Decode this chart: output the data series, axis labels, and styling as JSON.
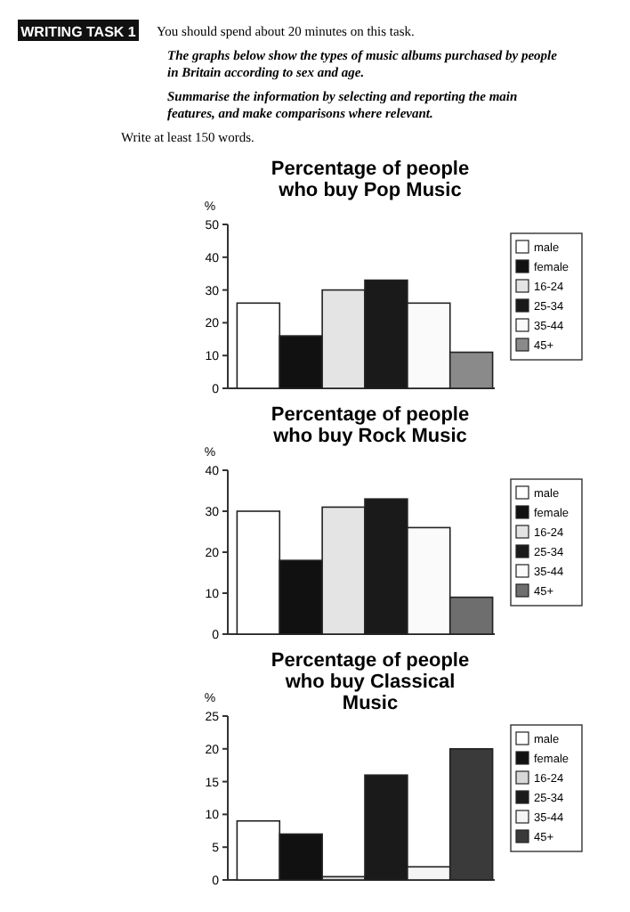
{
  "chart_data": [
    {
      "type": "other",
      "title": "WRITING TASK 1",
      "annotations": [
        "You should spend about 20 minutes on this task.",
        "The graphs below show the types of music albums purchased by people in Britain according to sex and age.",
        "Summarise the information by selecting and reporting the main features, and make comparisons where relevant.",
        "Write at least 150 words."
      ]
    },
    {
      "type": "bar",
      "title": "Percentage of people who buy Pop Music",
      "ylabel": "%",
      "categories": [
        null,
        null,
        null,
        null,
        null,
        null
      ],
      "ylim": [
        0,
        50
      ],
      "yticks": [
        0,
        10,
        20,
        30,
        40,
        50
      ],
      "legend": "right",
      "grid": false,
      "series": [
        {
          "name": "male",
          "color": "#ffffff",
          "values": [
            26,
            null,
            null,
            null,
            null,
            null
          ]
        },
        {
          "name": "female",
          "color": "#111111",
          "values": [
            null,
            16,
            null,
            null,
            null,
            null
          ]
        },
        {
          "name": "16-24",
          "color": "#e4e4e4",
          "values": [
            null,
            null,
            30,
            null,
            null,
            null
          ]
        },
        {
          "name": "25-34",
          "color": "#1a1a1a",
          "values": [
            null,
            null,
            null,
            33,
            null,
            null
          ]
        },
        {
          "name": "35-44",
          "color": "#fafafa",
          "values": [
            null,
            null,
            null,
            null,
            26,
            null
          ]
        },
        {
          "name": "45+",
          "color": "#8a8a8a",
          "values": [
            null,
            null,
            null,
            null,
            null,
            11
          ]
        }
      ]
    },
    {
      "type": "bar",
      "title": "Percentage of people who buy Rock Music",
      "ylabel": "%",
      "categories": [
        null,
        null,
        null,
        null,
        null,
        null
      ],
      "ylim": [
        0,
        40
      ],
      "yticks": [
        0,
        10,
        20,
        30,
        40
      ],
      "legend": "right",
      "grid": false,
      "series": [
        {
          "name": "male",
          "color": "#ffffff",
          "values": [
            30,
            null,
            null,
            null,
            null,
            null
          ]
        },
        {
          "name": "female",
          "color": "#111111",
          "values": [
            null,
            18,
            null,
            null,
            null,
            null
          ]
        },
        {
          "name": "16-24",
          "color": "#e4e4e4",
          "values": [
            null,
            null,
            31,
            null,
            null,
            null
          ]
        },
        {
          "name": "25-34",
          "color": "#1a1a1a",
          "values": [
            null,
            null,
            null,
            33,
            null,
            null
          ]
        },
        {
          "name": "35-44",
          "color": "#fafafa",
          "values": [
            null,
            null,
            null,
            null,
            26,
            null
          ]
        },
        {
          "name": "45+",
          "color": "#6e6e6e",
          "values": [
            null,
            null,
            null,
            null,
            null,
            9
          ]
        }
      ]
    },
    {
      "type": "bar",
      "title": "Percentage of people who buy Classical Music",
      "ylabel": "%",
      "categories": [
        null,
        null,
        null,
        null,
        null,
        null
      ],
      "ylim": [
        0,
        25
      ],
      "yticks": [
        0,
        5,
        10,
        15,
        20,
        25
      ],
      "legend": "right",
      "grid": false,
      "series": [
        {
          "name": "male",
          "color": "#ffffff",
          "values": [
            9,
            null,
            null,
            null,
            null,
            null
          ]
        },
        {
          "name": "female",
          "color": "#111111",
          "values": [
            null,
            7,
            null,
            null,
            null,
            null
          ]
        },
        {
          "name": "16-24",
          "color": "#d8d8d8",
          "values": [
            null,
            null,
            0.5,
            null,
            null,
            null
          ]
        },
        {
          "name": "25-34",
          "color": "#1a1a1a",
          "values": [
            null,
            null,
            null,
            16,
            null,
            null
          ]
        },
        {
          "name": "35-44",
          "color": "#f4f4f4",
          "values": [
            null,
            null,
            null,
            null,
            2,
            null
          ]
        },
        {
          "name": "45+",
          "color": "#3a3a3a",
          "values": [
            null,
            null,
            null,
            null,
            null,
            20
          ]
        }
      ]
    }
  ]
}
